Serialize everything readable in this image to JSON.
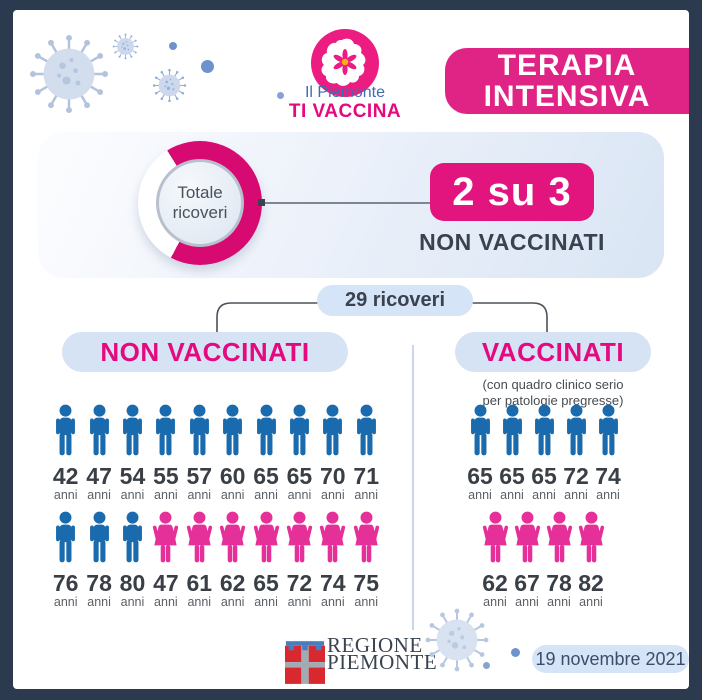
{
  "colors": {
    "frame": "#2c3a50",
    "pink": "#e5097f",
    "banner_pink": "#e02485",
    "donut_pink": "#d60a70",
    "male_blue": "#1a6bad",
    "female_pink": "#e5309a",
    "light_blue_pill": "#d6e3f5",
    "dark_text": "#39424e"
  },
  "header": {
    "logo_top": "Il Piemonte",
    "logo_bottom": "TI VACCINA",
    "banner_line1": "TERAPIA",
    "banner_line2": "INTENSIVA"
  },
  "hero": {
    "donut_label_line1": "Totale",
    "donut_label_line2": "ricoveri",
    "donut": {
      "color": "#d60a70",
      "white_from_deg": 208,
      "white_to_deg": 328
    },
    "ratio": "2 su 3",
    "ratio_caption": "NON VACCINATI"
  },
  "total_badge": "29 ricoveri",
  "unit": "anni",
  "columns": {
    "left": {
      "title": "NON VACCINATI",
      "rows": [
        [
          {
            "age": 42,
            "sex": "M"
          },
          {
            "age": 47,
            "sex": "M"
          },
          {
            "age": 54,
            "sex": "M"
          },
          {
            "age": 55,
            "sex": "M"
          },
          {
            "age": 57,
            "sex": "M"
          },
          {
            "age": 60,
            "sex": "M"
          },
          {
            "age": 65,
            "sex": "M"
          },
          {
            "age": 65,
            "sex": "M"
          },
          {
            "age": 70,
            "sex": "M"
          },
          {
            "age": 71,
            "sex": "M"
          }
        ],
        [
          {
            "age": 76,
            "sex": "M"
          },
          {
            "age": 78,
            "sex": "M"
          },
          {
            "age": 80,
            "sex": "M"
          },
          {
            "age": 47,
            "sex": "F"
          },
          {
            "age": 61,
            "sex": "F"
          },
          {
            "age": 62,
            "sex": "F"
          },
          {
            "age": 65,
            "sex": "F"
          },
          {
            "age": 72,
            "sex": "F"
          },
          {
            "age": 74,
            "sex": "F"
          },
          {
            "age": 75,
            "sex": "F"
          }
        ]
      ]
    },
    "right": {
      "title": "VACCINATI",
      "subtitle_line1": "(con quadro clinico serio",
      "subtitle_line2": "per patologie pregresse)",
      "rows": [
        [
          {
            "age": 65,
            "sex": "M"
          },
          {
            "age": 65,
            "sex": "M"
          },
          {
            "age": 65,
            "sex": "M"
          },
          {
            "age": 72,
            "sex": "M"
          },
          {
            "age": 74,
            "sex": "M"
          }
        ],
        [
          {
            "age": 62,
            "sex": "F"
          },
          {
            "age": 67,
            "sex": "F"
          },
          {
            "age": 78,
            "sex": "F"
          },
          {
            "age": 82,
            "sex": "F"
          }
        ]
      ]
    }
  },
  "footer": {
    "region_line1": "REGIONE",
    "region_line2": "PIEMONTE",
    "date": "19 novembre 2021"
  },
  "chart_data": [
    {
      "type": "pie",
      "title": "Totale ricoveri",
      "labels": [
        "NON VACCINATI",
        "VACCINATI"
      ],
      "values": [
        2,
        1
      ],
      "annotation": "2 su 3 NON VACCINATI",
      "total_label": "29 ricoveri"
    },
    {
      "type": "pictogram",
      "title": "NON VACCINATI",
      "unit": "anni",
      "series": [
        {
          "name": "uomini",
          "ages": [
            42,
            47,
            54,
            55,
            57,
            60,
            65,
            65,
            70,
            71,
            76,
            78,
            80
          ]
        },
        {
          "name": "donne",
          "ages": [
            47,
            61,
            62,
            65,
            72,
            74,
            75
          ]
        }
      ]
    },
    {
      "type": "pictogram",
      "title": "VACCINATI (con quadro clinico serio per patologie pregresse)",
      "unit": "anni",
      "series": [
        {
          "name": "uomini",
          "ages": [
            65,
            65,
            65,
            72,
            74
          ]
        },
        {
          "name": "donne",
          "ages": [
            62,
            67,
            78,
            82
          ]
        }
      ]
    }
  ]
}
